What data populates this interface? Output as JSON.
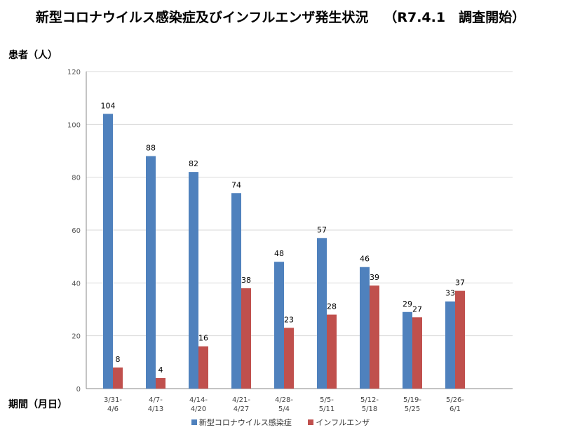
{
  "header": {
    "title": "新型コロナウイルス感染症及びインフルエンザ発生状況",
    "subtitle": "（R7.4.1　調査開始）"
  },
  "colors": {
    "covid": "#4F81BD",
    "flu": "#C0504D",
    "grid": "#D9D9D9",
    "axis": "#888888"
  },
  "chart_data": {
    "type": "bar",
    "title": "新型コロナウイルス感染症及びインフルエンザ発生状況",
    "ylabel": "患者（人）",
    "xlabel": "期間（月日）",
    "ylim": [
      0,
      120
    ],
    "yticks": [
      0,
      20,
      40,
      60,
      80,
      100,
      120
    ],
    "grid": true,
    "legend_position": "bottom",
    "categories": [
      [
        "3/31-",
        "4/6"
      ],
      [
        "4/7-",
        "4/13"
      ],
      [
        "4/14-",
        "4/20"
      ],
      [
        "4/21-",
        "4/27"
      ],
      [
        "4/28-",
        "5/4"
      ],
      [
        "5/5-",
        "5/11"
      ],
      [
        "5/12-",
        "5/18"
      ],
      [
        "5/19-",
        "5/25"
      ],
      [
        "5/26-",
        "6/1"
      ]
    ],
    "series": [
      {
        "name": "新型コロナウイルス感染症",
        "color": "#4F81BD",
        "values": [
          104,
          88,
          82,
          74,
          48,
          57,
          46,
          29,
          33
        ]
      },
      {
        "name": "インフルエンザ",
        "color": "#C0504D",
        "values": [
          8,
          4,
          16,
          38,
          23,
          28,
          39,
          27,
          37
        ]
      }
    ]
  }
}
